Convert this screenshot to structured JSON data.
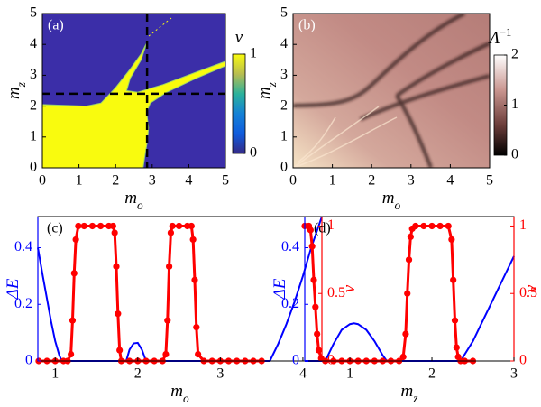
{
  "chart_data": [
    {
      "type": "heatmap",
      "label": "(a)",
      "xlabel": {
        "text": "m",
        "sub": "o"
      },
      "ylabel": {
        "text": "m",
        "sub": "z"
      },
      "xlim": [
        0,
        5
      ],
      "ylim": [
        0,
        5
      ],
      "xticks": [
        0,
        1,
        2,
        3,
        4,
        5
      ],
      "yticks": [
        0,
        1,
        2,
        3,
        4,
        5
      ],
      "crosshair": {
        "x": 2.86,
        "y": 2.4
      },
      "colorbar": {
        "label": {
          "text": "ν"
        },
        "lim": [
          0,
          1
        ],
        "ticks": [
          0,
          1
        ]
      }
    },
    {
      "type": "heatmap",
      "label": "(b)",
      "xlabel": {
        "text": "m",
        "sub": "o"
      },
      "ylabel": {
        "text": "m",
        "sub": "z"
      },
      "xlim": [
        0,
        5
      ],
      "ylim": [
        0,
        5
      ],
      "xticks": [
        0,
        1,
        2,
        3,
        4,
        5
      ],
      "yticks": [
        0,
        1,
        2,
        3,
        4,
        5
      ],
      "colorbar": {
        "label": {
          "text": "Λ",
          "sup": "−1"
        },
        "lim": [
          0,
          2
        ],
        "ticks": [
          0,
          1,
          2
        ]
      }
    },
    {
      "type": "line",
      "label": "(c)",
      "xlabel": {
        "text": "m",
        "sub": "o"
      },
      "ylabel": {
        "text": "ΔE"
      },
      "y2label": {
        "text": "ν"
      },
      "xlim": [
        0.79,
        4.23
      ],
      "ylim": [
        0,
        0.51
      ],
      "y2lim": [
        0,
        1.07
      ],
      "xticks": [
        1,
        2,
        3,
        4
      ],
      "yticks": [
        0,
        0.2,
        0.4
      ],
      "y2ticks": [
        0,
        0.5,
        1
      ],
      "series": [
        {
          "color": "#0000ff",
          "x": [
            0.79,
            0.85,
            0.9,
            0.95,
            1.0,
            1.05,
            1.08,
            1.86,
            1.9,
            1.95,
            2.0,
            2.05,
            2.1,
            3.6,
            3.7,
            3.8,
            3.9,
            4.0,
            4.1,
            4.23
          ],
          "values": [
            0.4,
            0.3,
            0.22,
            0.14,
            0.07,
            0.02,
            0,
            0,
            0.04,
            0.062,
            0.064,
            0.04,
            0,
            0,
            0.06,
            0.13,
            0.21,
            0.3,
            0.4,
            0.51
          ]
        },
        {
          "color": "#ff0000",
          "axis": "y2",
          "marker": "o",
          "x": [
            0.8,
            0.9,
            1.0,
            1.1,
            1.15,
            1.19,
            1.21,
            1.23,
            1.25,
            1.28,
            1.35,
            1.45,
            1.55,
            1.65,
            1.7,
            1.72,
            1.74,
            1.76,
            1.78,
            1.8,
            1.9,
            2.0,
            2.1,
            2.2,
            2.3,
            2.34,
            2.36,
            2.38,
            2.4,
            2.42,
            2.5,
            2.6,
            2.65,
            2.67,
            2.69,
            2.71,
            2.73,
            2.8,
            2.9,
            3.0,
            3.1,
            3.2,
            3.3,
            3.4,
            3.5
          ],
          "values": [
            0,
            0,
            0,
            0,
            0,
            0.05,
            0.3,
            0.65,
            0.9,
            1,
            1,
            1,
            1,
            1,
            1,
            0.95,
            0.7,
            0.35,
            0.08,
            0,
            0,
            0,
            0,
            0,
            0,
            0.05,
            0.3,
            0.7,
            0.95,
            1,
            1,
            1,
            1,
            0.9,
            0.6,
            0.25,
            0.05,
            0,
            0,
            0,
            0,
            0,
            0,
            0,
            0
          ]
        }
      ]
    },
    {
      "type": "line",
      "label": "(d)",
      "xlabel": {
        "text": "m",
        "sub": "z"
      },
      "ylabel": {
        "text": "ΔE"
      },
      "y2label": {
        "text": "ν"
      },
      "xlim": [
        0.45,
        3
      ],
      "ylim": [
        0,
        0.51
      ],
      "y2lim": [
        0,
        1.07
      ],
      "xticks": [
        1,
        2,
        3
      ],
      "yticks": [
        0,
        0.2,
        0.4
      ],
      "y2ticks": [
        0,
        0.5,
        1
      ],
      "series": [
        {
          "color": "#0000ff",
          "x": [
            0.45,
            0.7,
            0.8,
            0.9,
            1.0,
            1.05,
            1.1,
            1.2,
            1.3,
            1.4,
            1.45,
            2.35,
            2.5,
            2.6,
            2.7,
            2.8,
            2.9,
            3.0
          ],
          "values": [
            0,
            0,
            0.06,
            0.11,
            0.13,
            0.133,
            0.13,
            0.11,
            0.07,
            0.02,
            0,
            0,
            0.07,
            0.13,
            0.19,
            0.25,
            0.31,
            0.37
          ]
        },
        {
          "color": "#ff0000",
          "axis": "y2",
          "marker": "o",
          "x": [
            0.45,
            0.5,
            0.52,
            0.54,
            0.56,
            0.58,
            0.6,
            0.62,
            0.65,
            0.7,
            0.8,
            0.9,
            1.0,
            1.1,
            1.2,
            1.3,
            1.4,
            1.5,
            1.6,
            1.65,
            1.68,
            1.7,
            1.72,
            1.74,
            1.76,
            1.8,
            1.9,
            2.0,
            2.1,
            2.2,
            2.24,
            2.26,
            2.28,
            2.3,
            2.32,
            2.35,
            2.4,
            2.5
          ],
          "values": [
            1,
            1,
            0.97,
            0.85,
            0.6,
            0.4,
            0.2,
            0.08,
            0.02,
            0,
            0,
            0,
            0,
            0,
            0,
            0,
            0,
            0,
            0,
            0.03,
            0.2,
            0.5,
            0.75,
            0.92,
            0.98,
            1,
            1,
            1,
            1,
            1,
            0.9,
            0.6,
            0.3,
            0.1,
            0.03,
            0,
            0,
            0
          ]
        }
      ]
    }
  ]
}
